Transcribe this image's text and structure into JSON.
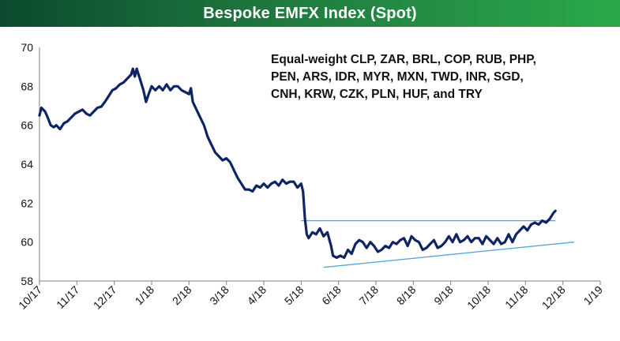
{
  "chart_data": {
    "type": "line",
    "title": "Bespoke EMFX Index (Spot)",
    "annotation_lines": [
      "Equal-weight CLP, ZAR, BRL, COP, RUB, PHP,",
      "PEN, ARS, IDR, MYR, MXN, TWD, INR, SGD,",
      "CNH, KRW, CZK, PLN, HUF, and TRY"
    ],
    "ylim": [
      58,
      70
    ],
    "yticks": [
      58,
      60,
      62,
      64,
      66,
      68,
      70
    ],
    "xticks": [
      "10/17",
      "11/17",
      "12/17",
      "1/18",
      "2/18",
      "3/18",
      "4/18",
      "5/18",
      "6/18",
      "7/18",
      "8/18",
      "9/18",
      "10/18",
      "11/18",
      "12/18",
      "1/19"
    ],
    "colors": {
      "series": "#0f2463",
      "trendlines": "#5aa6d8",
      "title_bar": "#1f7a3f"
    },
    "series": [
      {
        "values": [
          [
            0,
            66.5
          ],
          [
            0.05,
            66.9
          ],
          [
            0.1,
            66.8
          ],
          [
            0.15,
            66.7
          ],
          [
            0.22,
            66.4
          ],
          [
            0.3,
            66.0
          ],
          [
            0.38,
            65.9
          ],
          [
            0.45,
            66.0
          ],
          [
            0.55,
            65.8
          ],
          [
            0.65,
            66.1
          ],
          [
            0.75,
            66.2
          ],
          [
            0.85,
            66.4
          ],
          [
            0.95,
            66.6
          ],
          [
            1.05,
            66.7
          ],
          [
            1.15,
            66.8
          ],
          [
            1.25,
            66.6
          ],
          [
            1.35,
            66.5
          ],
          [
            1.45,
            66.7
          ],
          [
            1.55,
            66.9
          ],
          [
            1.65,
            66.95
          ],
          [
            1.75,
            67.2
          ],
          [
            1.85,
            67.5
          ],
          [
            1.95,
            67.8
          ],
          [
            2.05,
            67.9
          ],
          [
            2.15,
            68.1
          ],
          [
            2.25,
            68.2
          ],
          [
            2.35,
            68.4
          ],
          [
            2.45,
            68.6
          ],
          [
            2.5,
            68.9
          ],
          [
            2.55,
            68.5
          ],
          [
            2.6,
            68.9
          ],
          [
            2.7,
            68.3
          ],
          [
            2.78,
            67.8
          ],
          [
            2.85,
            67.2
          ],
          [
            2.92,
            67.6
          ],
          [
            3.0,
            68.0
          ],
          [
            3.1,
            67.8
          ],
          [
            3.2,
            68.0
          ],
          [
            3.3,
            67.8
          ],
          [
            3.4,
            68.1
          ],
          [
            3.5,
            67.8
          ],
          [
            3.6,
            68.0
          ],
          [
            3.7,
            68.0
          ],
          [
            3.8,
            67.8
          ],
          [
            3.9,
            67.7
          ],
          [
            4.0,
            67.6
          ],
          [
            4.05,
            67.9
          ],
          [
            4.1,
            67.2
          ],
          [
            4.2,
            66.8
          ],
          [
            4.3,
            66.4
          ],
          [
            4.4,
            66.0
          ],
          [
            4.5,
            65.4
          ],
          [
            4.6,
            65.0
          ],
          [
            4.7,
            64.6
          ],
          [
            4.8,
            64.4
          ],
          [
            4.9,
            64.2
          ],
          [
            5.0,
            64.3
          ],
          [
            5.1,
            64.1
          ],
          [
            5.2,
            63.7
          ],
          [
            5.3,
            63.3
          ],
          [
            5.4,
            63.0
          ],
          [
            5.5,
            62.7
          ],
          [
            5.6,
            62.7
          ],
          [
            5.7,
            62.6
          ],
          [
            5.8,
            62.9
          ],
          [
            5.9,
            62.8
          ],
          [
            6.0,
            63.0
          ],
          [
            6.1,
            62.8
          ],
          [
            6.2,
            63.0
          ],
          [
            6.3,
            63.1
          ],
          [
            6.4,
            62.9
          ],
          [
            6.5,
            63.2
          ],
          [
            6.6,
            63.0
          ],
          [
            6.7,
            63.1
          ],
          [
            6.8,
            63.1
          ],
          [
            6.9,
            62.8
          ],
          [
            7.0,
            63.0
          ],
          [
            7.05,
            62.6
          ],
          [
            7.1,
            61.2
          ],
          [
            7.15,
            60.4
          ],
          [
            7.2,
            60.2
          ],
          [
            7.3,
            60.5
          ],
          [
            7.4,
            60.4
          ],
          [
            7.5,
            60.7
          ],
          [
            7.6,
            60.3
          ],
          [
            7.7,
            60.5
          ],
          [
            7.8,
            59.8
          ],
          [
            7.85,
            59.3
          ],
          [
            7.95,
            59.2
          ],
          [
            8.05,
            59.3
          ],
          [
            8.15,
            59.2
          ],
          [
            8.25,
            59.6
          ],
          [
            8.35,
            59.4
          ],
          [
            8.45,
            59.9
          ],
          [
            8.55,
            60.1
          ],
          [
            8.65,
            60.0
          ],
          [
            8.75,
            59.7
          ],
          [
            8.85,
            60.0
          ],
          [
            8.95,
            59.8
          ],
          [
            9.05,
            59.5
          ],
          [
            9.15,
            59.6
          ],
          [
            9.25,
            59.8
          ],
          [
            9.35,
            59.7
          ],
          [
            9.45,
            60.0
          ],
          [
            9.55,
            59.9
          ],
          [
            9.65,
            60.1
          ],
          [
            9.75,
            60.2
          ],
          [
            9.85,
            59.8
          ],
          [
            9.95,
            60.3
          ],
          [
            10.05,
            60.1
          ],
          [
            10.15,
            60.0
          ],
          [
            10.25,
            59.6
          ],
          [
            10.35,
            59.7
          ],
          [
            10.45,
            59.9
          ],
          [
            10.55,
            60.1
          ],
          [
            10.65,
            59.7
          ],
          [
            10.75,
            59.8
          ],
          [
            10.85,
            60.0
          ],
          [
            10.95,
            60.3
          ],
          [
            11.05,
            60.0
          ],
          [
            11.15,
            60.4
          ],
          [
            11.25,
            60.0
          ],
          [
            11.35,
            60.1
          ],
          [
            11.45,
            60.3
          ],
          [
            11.55,
            60.0
          ],
          [
            11.65,
            60.2
          ],
          [
            11.75,
            60.2
          ],
          [
            11.85,
            59.9
          ],
          [
            11.95,
            60.3
          ],
          [
            12.05,
            60.1
          ],
          [
            12.15,
            59.9
          ],
          [
            12.25,
            60.2
          ],
          [
            12.35,
            59.9
          ],
          [
            12.45,
            60.0
          ],
          [
            12.55,
            60.4
          ],
          [
            12.65,
            60.0
          ],
          [
            12.75,
            60.4
          ],
          [
            12.85,
            60.6
          ],
          [
            12.95,
            60.8
          ],
          [
            13.05,
            60.6
          ],
          [
            13.15,
            60.9
          ],
          [
            13.25,
            61.0
          ],
          [
            13.35,
            60.9
          ],
          [
            13.45,
            61.1
          ],
          [
            13.55,
            61.0
          ],
          [
            13.65,
            61.2
          ],
          [
            13.75,
            61.5
          ],
          [
            13.8,
            61.6
          ]
        ]
      }
    ],
    "trendlines": [
      {
        "x": [
          7.0,
          13.8
        ],
        "y": [
          61.1,
          61.1
        ]
      },
      {
        "x": [
          7.6,
          14.3
        ],
        "y": [
          58.7,
          60.0
        ]
      }
    ]
  }
}
